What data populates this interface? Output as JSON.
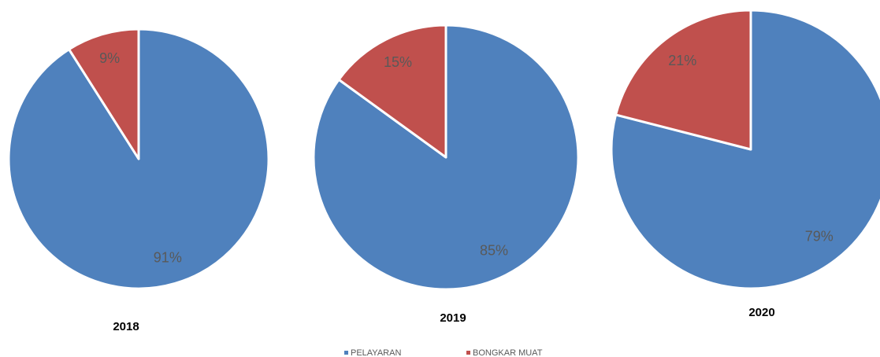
{
  "chart_data": [
    {
      "type": "pie",
      "title": "2018",
      "categories": [
        "PELAYARAN",
        "BONGKAR MUAT"
      ],
      "values": [
        91,
        9
      ],
      "value_labels": [
        "91%",
        "9%"
      ],
      "colors": [
        "#4f81bd",
        "#c0504d"
      ],
      "legend": "bottom"
    },
    {
      "type": "pie",
      "title": "2019",
      "categories": [
        "PELAYARAN",
        "BONGKAR MUAT"
      ],
      "values": [
        85,
        15
      ],
      "value_labels": [
        "85%",
        "15%"
      ],
      "colors": [
        "#4f81bd",
        "#c0504d"
      ]
    },
    {
      "type": "pie",
      "title": "2020",
      "categories": [
        "PELAYARAN",
        "BONGKAR MUAT"
      ],
      "values": [
        79,
        21
      ],
      "value_labels": [
        "79%",
        "21%"
      ],
      "colors": [
        "#4f81bd",
        "#c0504d"
      ]
    }
  ]
}
